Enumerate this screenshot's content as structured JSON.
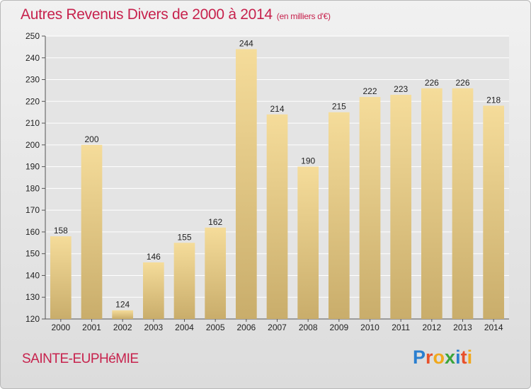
{
  "title": "Autres Revenus Divers de 2000 à 2014",
  "unit": "(en milliers d'€)",
  "commune": "SAINTE-EUPHéMIE",
  "logo": {
    "letters": [
      {
        "ch": "P",
        "color": "#2a7fd0"
      },
      {
        "ch": "r",
        "color": "#e8502a"
      },
      {
        "ch": "o",
        "color": "#f0a81c"
      },
      {
        "ch": "x",
        "color": "#3aa53a"
      },
      {
        "ch": "i",
        "color": "#2a7fd0"
      },
      {
        "ch": "t",
        "color": "#e8502a"
      },
      {
        "ch": "i",
        "color": "#f0a81c"
      }
    ]
  },
  "colors": {
    "title": "#c7224d",
    "bar_light": "#f5dc9a",
    "bar_dark": "#c9ad6b",
    "grid": "#ffffff"
  },
  "chart_data": {
    "type": "bar",
    "categories": [
      "2000",
      "2001",
      "2002",
      "2003",
      "2004",
      "2005",
      "2006",
      "2007",
      "2008",
      "2009",
      "2010",
      "2011",
      "2012",
      "2013",
      "2014"
    ],
    "values": [
      158,
      200,
      124,
      146,
      155,
      162,
      244,
      214,
      190,
      215,
      222,
      223,
      226,
      226,
      218
    ],
    "ylim": [
      120,
      250
    ],
    "yticks": [
      120,
      130,
      140,
      150,
      160,
      170,
      180,
      190,
      200,
      210,
      220,
      230,
      240,
      250
    ],
    "grid": true
  }
}
